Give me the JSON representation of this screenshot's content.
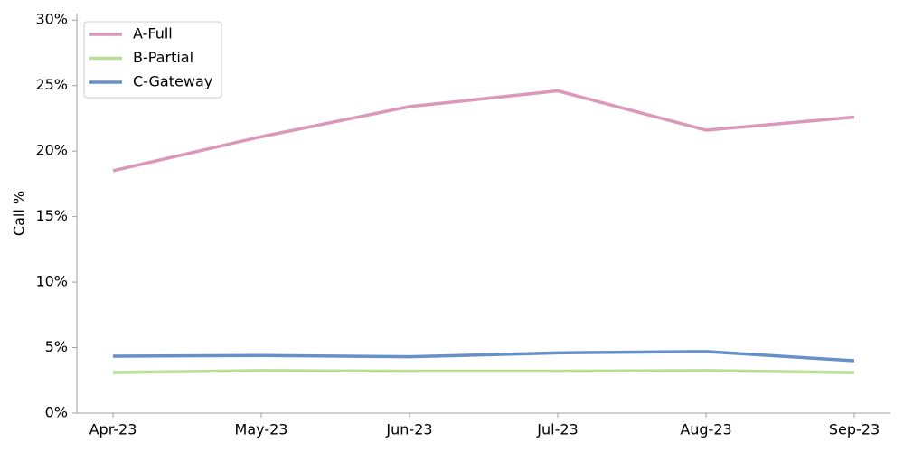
{
  "chart_data": {
    "type": "line",
    "y_label": "Call %",
    "categories": [
      "Apr-23",
      "May-23",
      "Jun-23",
      "Jul-23",
      "Aug-23",
      "Sep-23"
    ],
    "series": [
      {
        "name": "A-Full",
        "color": "#db98b8",
        "values": [
          18.5,
          21.1,
          23.4,
          24.6,
          21.6,
          22.6
        ]
      },
      {
        "name": "B-Partial",
        "color": "#b8de96",
        "values": [
          3.1,
          3.25,
          3.2,
          3.2,
          3.25,
          3.1
        ]
      },
      {
        "name": "C-Gateway",
        "color": "#6690c8",
        "values": [
          4.35,
          4.4,
          4.3,
          4.6,
          4.7,
          4.0
        ]
      }
    ],
    "ylim": [
      0,
      30.5
    ],
    "yticks": [
      {
        "value": 0,
        "label": "0%"
      },
      {
        "value": 5,
        "label": "5%"
      },
      {
        "value": 10,
        "label": "10%"
      },
      {
        "value": 15,
        "label": "15%"
      },
      {
        "value": 20,
        "label": "20%"
      },
      {
        "value": 25,
        "label": "25%"
      },
      {
        "value": 30,
        "label": "30%"
      }
    ],
    "legend": "upper left"
  }
}
